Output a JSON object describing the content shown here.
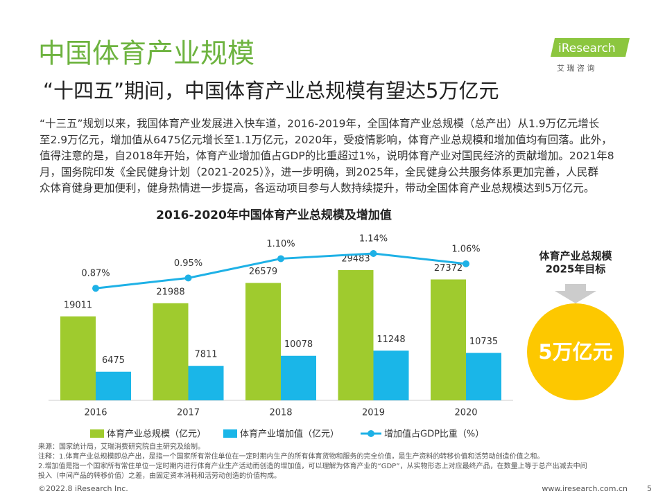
{
  "title": "中国体育产业规模",
  "subtitle": "“十四五”期间，中国体育产业总规模有望达5万亿元",
  "logo": {
    "name": "iResearch",
    "cn": "艾 瑞 咨 询"
  },
  "body": [
    "“十三五”规划以来，我国体育产业发展进入快车道，2016-2019年，全国体育产业总规模（总产出）从1.9万亿元增长",
    "至2.9万亿元，增加值从6475亿元增长至1.1万亿元，2020年，受疫情影响，体育产业总规模和增加值均有回落。此外，",
    "值得注意的是，自2018年开始，体育产业增加值占GDP的比重超过1%，说明体育产业对国民经济的贡献增加。2021年8",
    "月，国务院印发《全民健身计划（2021-2025）》，进一步明确，到2025年，全民健身公共服务体系更加完善，人民群",
    "众体育健身更加便利，健身热情进一步提高，各运动项目参与人数持续提升，带动全国体育产业总规模达到5万亿元。"
  ],
  "chart_data": {
    "type": "bar",
    "title": "2016-2020年中国体育产业总规模及增加值",
    "categories": [
      "2016",
      "2017",
      "2018",
      "2019",
      "2020"
    ],
    "series": [
      {
        "name": "体育产业总规模（亿元）",
        "color": "#9fcb2e",
        "values": [
          19011,
          21988,
          26579,
          29483,
          27372
        ]
      },
      {
        "name": "体育产业增加值（亿元）",
        "color": "#1ab6e8",
        "values": [
          6475,
          7811,
          10078,
          11248,
          10735
        ]
      },
      {
        "name": "增加值占GDP比重（%）",
        "color": "#1eb1e6",
        "type": "line",
        "axis": "y2",
        "values": [
          0.87,
          0.95,
          1.1,
          1.14,
          1.06
        ],
        "value_labels": [
          "0.87%",
          "0.95%",
          "1.10%",
          "1.14%",
          "1.06%"
        ]
      }
    ]
  },
  "target": {
    "title": [
      "体育产业总规模",
      "2025年目标"
    ],
    "value": "5万亿元"
  },
  "notes": [
    "来源：国家统计局，艾瑞消费研究院自主研究及绘制。",
    "注释：1.体育产业总规模即总产出，是指一个国家所有常住单位在一定时期内生产的所有体育货物和服务的完全价值，是生产资料的转移价值和活劳动创造价值之和。",
    "2.增加值是指一个国家所有常住单位一定时期内进行体育产业生产活动而创造的增加值，可以理解为体育产业的“GDP”，从实物形态上对应最终产品，在数量上等于总产出减去中间",
    "投入（中间产品的转移价值）之差，由固定资本消耗和活劳动创造的价值构成。"
  ],
  "footer": {
    "copyright": "©2022.8 iResearch Inc.",
    "url": "www.iresearch.com.cn",
    "page": "5"
  }
}
